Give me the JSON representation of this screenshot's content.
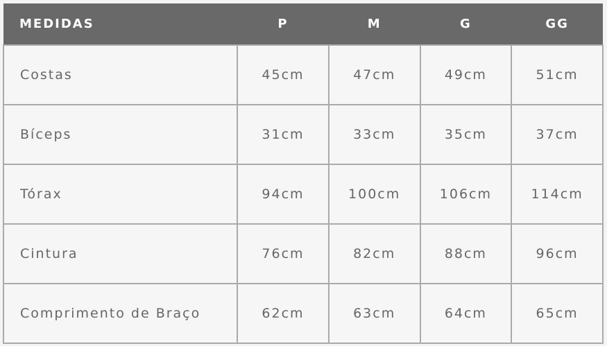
{
  "table": {
    "headers": [
      "MEDIDAS",
      "P",
      "M",
      "G",
      "GG"
    ],
    "rows": [
      [
        "Costas",
        "45cm",
        "47cm",
        "49cm",
        "51cm"
      ],
      [
        "Bíceps",
        "31cm",
        "33cm",
        "35cm",
        "37cm"
      ],
      [
        "Tórax",
        "94cm",
        "100cm",
        "106cm",
        "114cm"
      ],
      [
        "Cintura",
        "76cm",
        "82cm",
        "88cm",
        "96cm"
      ],
      [
        "Comprimento de Braço",
        "62cm",
        "63cm",
        "64cm",
        "65cm"
      ]
    ]
  },
  "colors": {
    "header_bg": "#696969",
    "header_text": "#ffffff",
    "cell_text": "#666666",
    "border": "#aaaaaa",
    "cell_bg": "#f6f6f6"
  }
}
